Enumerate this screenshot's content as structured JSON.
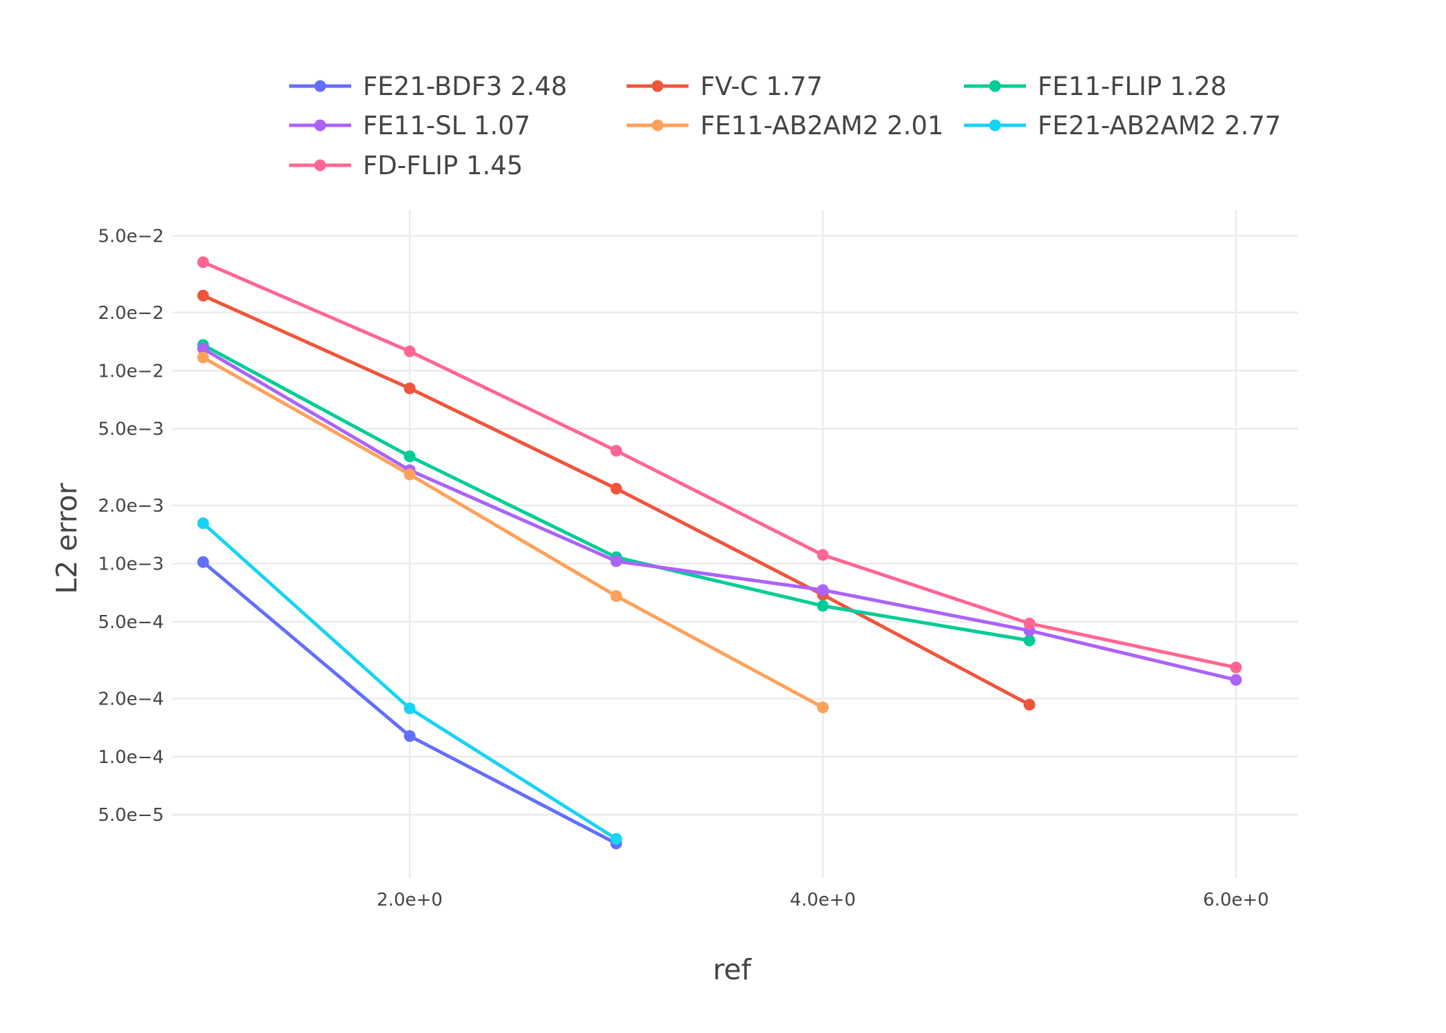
{
  "chart_data": {
    "type": "line",
    "title": "",
    "xlabel": "ref",
    "ylabel": "L2 error",
    "x_scale": "linear",
    "y_scale": "log",
    "xlim": [
      0.85,
      6.3
    ],
    "ylim": [
      2.35e-05,
      0.068
    ],
    "grid": true,
    "legend_position": "top",
    "x_ticks": [
      {
        "value": 2,
        "label": "2.0e+0"
      },
      {
        "value": 4,
        "label": "4.0e+0"
      },
      {
        "value": 6,
        "label": "6.0e+0"
      }
    ],
    "y_ticks": [
      {
        "value": 0.05,
        "label": "5.0e−2"
      },
      {
        "value": 0.02,
        "label": "2.0e−2"
      },
      {
        "value": 0.01,
        "label": "1.0e−2"
      },
      {
        "value": 0.005,
        "label": "5.0e−3"
      },
      {
        "value": 0.002,
        "label": "2.0e−3"
      },
      {
        "value": 0.001,
        "label": "1.0e−3"
      },
      {
        "value": 0.0005,
        "label": "5.0e−4"
      },
      {
        "value": 0.0002,
        "label": "2.0e−4"
      },
      {
        "value": 0.0001,
        "label": "1.0e−4"
      },
      {
        "value": 5e-05,
        "label": "5.0e−5"
      }
    ],
    "series": [
      {
        "name": "FE21-BDF3 2.48",
        "color": "#636efa",
        "x": [
          1,
          2,
          3
        ],
        "values": [
          0.00102,
          0.000128,
          3.55e-05
        ]
      },
      {
        "name": "FV-C 1.77",
        "color": "#ef553b",
        "x": [
          1,
          2,
          3,
          4,
          5
        ],
        "values": [
          0.0245,
          0.0081,
          0.00245,
          0.00069,
          0.000186
        ]
      },
      {
        "name": "FE11-FLIP 1.28",
        "color": "#00cc96",
        "x": [
          1,
          2,
          3,
          4,
          5
        ],
        "values": [
          0.0136,
          0.0036,
          0.00108,
          0.000605,
          0.0004
        ]
      },
      {
        "name": "FE11-SL 1.07",
        "color": "#ab63fa",
        "x": [
          1,
          2,
          3,
          4,
          5,
          6
        ],
        "values": [
          0.013,
          0.00305,
          0.00103,
          0.00073,
          0.00045,
          0.00025
        ]
      },
      {
        "name": "FE11-AB2AM2 2.01",
        "color": "#ffa15a",
        "x": [
          1,
          2,
          3,
          4
        ],
        "values": [
          0.0117,
          0.0029,
          0.00068,
          0.00018
        ]
      },
      {
        "name": "FE21-AB2AM2 2.77",
        "color": "#19d3f3",
        "x": [
          1,
          2,
          3
        ],
        "values": [
          0.00162,
          0.000178,
          3.75e-05
        ]
      },
      {
        "name": "FD-FLIP 1.45",
        "color": "#ff6692",
        "x": [
          1,
          2,
          3,
          4,
          5,
          6
        ],
        "values": [
          0.0365,
          0.0126,
          0.00385,
          0.00111,
          0.00049,
          0.00029
        ]
      }
    ]
  }
}
